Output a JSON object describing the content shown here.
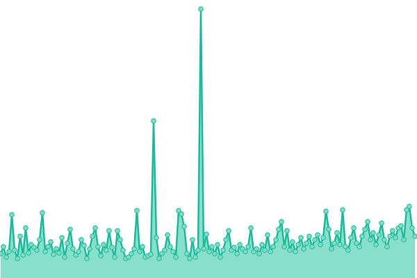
{
  "chart_data": {
    "type": "area",
    "title": "",
    "xlabel": "",
    "ylabel": "",
    "grid": false,
    "legend": "none",
    "ylim": [
      0,
      400
    ],
    "colors": {
      "line": "#1abc9c",
      "fill": "#88e0cc",
      "marker_fill": "#7fdcc4",
      "marker_stroke": "#1abc9c"
    },
    "series": [
      {
        "values": [
          35,
          45,
          30,
          38,
          91,
          40,
          28,
          60,
          33,
          72,
          36,
          48,
          44,
          40,
          55,
          94,
          38,
          45,
          52,
          34,
          42,
          36,
          58,
          30,
          50,
          70,
          42,
          33,
          38,
          55,
          47,
          28,
          42,
          60,
          72,
          45,
          32,
          48,
          40,
          68,
          44,
          30,
          68,
          55,
          40,
          28,
          30,
          35,
          42,
          97,
          38,
          45,
          30,
          32,
          34,
          226,
          58,
          28,
          35,
          40,
          62,
          45,
          38,
          30,
          97,
          92,
          74,
          35,
          28,
          55,
          30,
          40,
          387,
          42,
          63,
          38,
          45,
          35,
          48,
          30,
          40,
          55,
          68,
          40,
          44,
          35,
          48,
          42,
          38,
          45,
          72,
          38,
          42,
          35,
          48,
          40,
          62,
          38,
          45,
          55,
          70,
          81,
          45,
          68,
          40,
          52,
          38,
          48,
          58,
          42,
          50,
          60,
          45,
          55,
          62,
          48,
          58,
          96,
          70,
          42,
          50,
          65,
          48,
          98,
          45,
          40,
          58,
          72,
          50,
          45,
          60,
          70,
          81,
          55,
          65,
          48,
          62,
          79,
          55,
          45,
          60,
          68,
          58,
          72,
          75,
          55,
          98,
          103,
          72,
          60
        ]
      }
    ]
  }
}
